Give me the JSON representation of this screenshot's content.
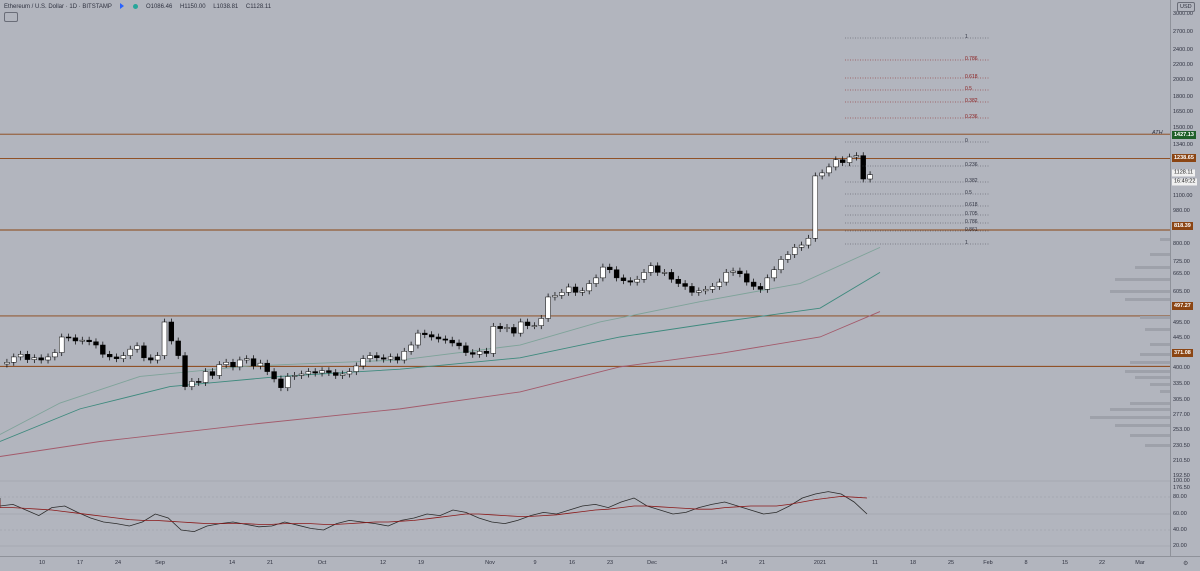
{
  "header": {
    "symbol": "Ethereum / U.S. Dollar · 1D · BITSTAMP",
    "open": "O1086.46",
    "high": "H1150.00",
    "low": "L1038.81",
    "close": "C1128.11"
  },
  "currency": "USD",
  "ath_label": "ATH",
  "price_axis": {
    "ticks": [
      "3000.00",
      "2700.00",
      "2400.00",
      "2200.00",
      "2000.00",
      "1800.00",
      "1650.00",
      "1500.00",
      "1340.00",
      "1100.00",
      "980.00",
      "880.00",
      "800.00",
      "725.00",
      "665.00",
      "605.00",
      "545.00",
      "495.00",
      "445.00",
      "400.00",
      "335.00",
      "305.00",
      "277.00",
      "253.00",
      "230.50",
      "210.50",
      "192.50",
      "176.50"
    ],
    "tags": {
      "ath": "1427.13",
      "r1": "1238.65",
      "current": "1128.11",
      "countdown": "16:49:22",
      "r2": "818.39",
      "r3": "497.27",
      "r4": "371.08"
    }
  },
  "osc_axis": {
    "ticks": [
      "100.00",
      "80.00",
      "60.00",
      "40.00",
      "20.00"
    ]
  },
  "time_axis": {
    "ticks": [
      "10",
      "17",
      "24",
      "Sep",
      "14",
      "21",
      "Oct",
      "12",
      "19",
      "Nov",
      "9",
      "16",
      "23",
      "Dec",
      "14",
      "21",
      "2021",
      "11",
      "18",
      "25",
      "Feb",
      "8",
      "15",
      "22",
      "Mar"
    ]
  },
  "fib_upper": [
    "1",
    "0.786",
    "0.618",
    "0.5",
    "0.382",
    "0.236",
    "0"
  ],
  "fib_lower": [
    "0.236",
    "0.382",
    "0.5",
    "0.618",
    "0.705",
    "0.786",
    "0.861",
    "1"
  ],
  "chart_data": {
    "type": "candlestick",
    "interval": "1D",
    "candles_approx_close": [
      380,
      392,
      398,
      386,
      390,
      385,
      392,
      402,
      440,
      438,
      430,
      432,
      428,
      420,
      398,
      392,
      388,
      395,
      410,
      418,
      390,
      385,
      395,
      480,
      430,
      395,
      330,
      340,
      338,
      360,
      352,
      375,
      380,
      370,
      385,
      388,
      372,
      378,
      360,
      345,
      328,
      350,
      352,
      355,
      360,
      357,
      362,
      358,
      352,
      355,
      360,
      372,
      388,
      395,
      390,
      387,
      392,
      385,
      405,
      420,
      450,
      446,
      440,
      435,
      432,
      425,
      418,
      402,
      398,
      405,
      400,
      468,
      462,
      465,
      450,
      480,
      470,
      470,
      490,
      555,
      560,
      570,
      588,
      570,
      575,
      600,
      620,
      660,
      650,
      620,
      610,
      605,
      615,
      640,
      665,
      640,
      640,
      615,
      600,
      590,
      570,
      575,
      580,
      590,
      605,
      640,
      645,
      635,
      605,
      590,
      580,
      620,
      650,
      690,
      710,
      740,
      750,
      780,
      1120,
      1140,
      1180,
      1230,
      1210,
      1250,
      1260,
      1100,
      1128
    ],
    "horizontal_levels": [
      1427.13,
      1238.65,
      818.39,
      497.27,
      371.08
    ]
  },
  "colors": {
    "background": "#b2b5be",
    "candle_up": "#ffffff",
    "candle_down": "#000000",
    "level_line": "#8b4513",
    "ma_fast": "#7fa39a",
    "ma_mid": "#3f8a7e",
    "ma_slow": "#a35a6b",
    "osc_line": "#2b2b2b",
    "osc_signal": "#8b1a1a"
  }
}
